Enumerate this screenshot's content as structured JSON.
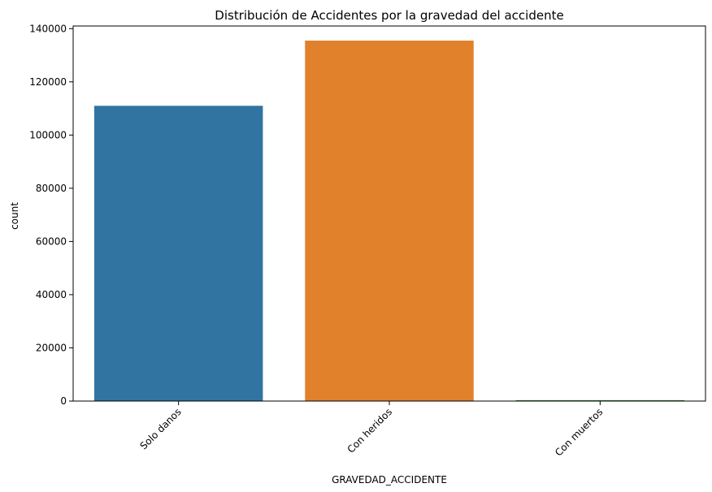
{
  "chart_data": {
    "type": "bar",
    "title": "Distribución de Accidentes por la gravedad del accidente",
    "xlabel": "GRAVEDAD_ACCIDENTE",
    "ylabel": "count",
    "categories": [
      "Solo danos",
      "Con heridos",
      "Con muertos"
    ],
    "values": [
      111000,
      135500,
      350
    ],
    "colors": [
      "#3274a1",
      "#e1812c",
      "#3a923a"
    ],
    "ylim": [
      0,
      141000
    ],
    "yticks": [
      0,
      20000,
      40000,
      60000,
      80000,
      100000,
      120000,
      140000
    ],
    "ytick_labels": [
      "0",
      "20000",
      "40000",
      "60000",
      "80000",
      "100000",
      "120000",
      "140000"
    ],
    "xtick_rotation": 45,
    "grid": false,
    "legend": "none"
  }
}
